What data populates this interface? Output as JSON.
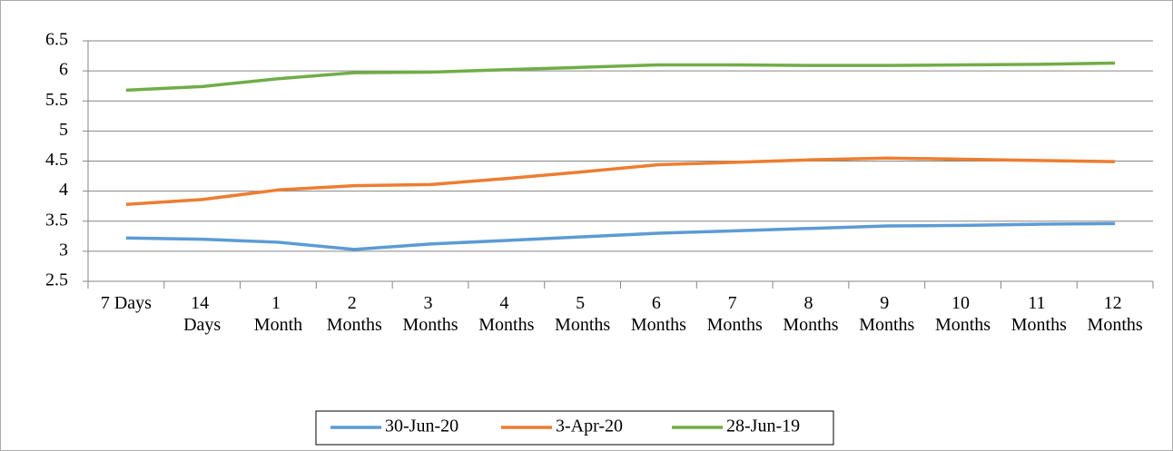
{
  "chart_data": {
    "type": "line",
    "categories": [
      "7 Days",
      "14 Days",
      "1 Month",
      "2 Months",
      "3 Months",
      "4 Months",
      "5 Months",
      "6 Months",
      "7 Months",
      "8 Months",
      "9 Months",
      "10 Months",
      "11 Months",
      "12 Months"
    ],
    "series": [
      {
        "name": "30-Jun-20",
        "color": "#5b9bd5",
        "values": [
          3.22,
          3.2,
          3.15,
          3.03,
          3.12,
          3.18,
          3.24,
          3.3,
          3.34,
          3.38,
          3.42,
          3.43,
          3.45,
          3.46
        ]
      },
      {
        "name": "3-Apr-20",
        "color": "#ed7d31",
        "values": [
          3.78,
          3.86,
          4.02,
          4.09,
          4.11,
          4.21,
          4.32,
          4.44,
          4.48,
          4.52,
          4.55,
          4.53,
          4.51,
          4.49
        ]
      },
      {
        "name": "28-Jun-19",
        "color": "#70ad47",
        "values": [
          5.68,
          5.74,
          5.87,
          5.97,
          5.98,
          6.02,
          6.06,
          6.1,
          6.1,
          6.09,
          6.09,
          6.1,
          6.11,
          6.13
        ]
      }
    ],
    "ylim": [
      2.5,
      6.5
    ],
    "yticks": [
      2.5,
      3,
      3.5,
      4,
      4.5,
      5,
      5.5,
      6,
      6.5
    ],
    "grid": true,
    "legend": "bottom"
  }
}
